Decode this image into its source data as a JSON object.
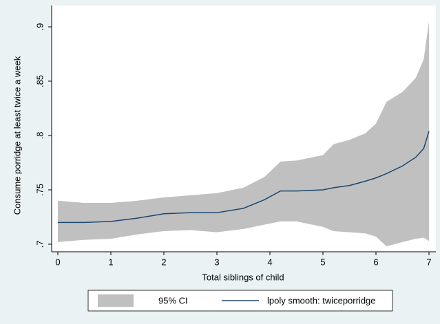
{
  "chart_data": {
    "type": "line",
    "xlabel": "Total siblings of child",
    "ylabel": "Consume porridge at least twice a week",
    "x": [
      0,
      0.5,
      1,
      1.5,
      2,
      2.5,
      3,
      3.5,
      3.9,
      4.2,
      4.5,
      5,
      5.2,
      5.5,
      5.8,
      6,
      6.2,
      6.5,
      6.75,
      6.9,
      7
    ],
    "series": [
      {
        "name": "95% CI",
        "type": "band",
        "color": "#c0c0c0",
        "lower": [
          0.702,
          0.704,
          0.705,
          0.709,
          0.712,
          0.713,
          0.711,
          0.714,
          0.718,
          0.721,
          0.721,
          0.716,
          0.712,
          0.711,
          0.71,
          0.707,
          0.698,
          0.702,
          0.705,
          0.706,
          0.703
        ],
        "upper": [
          0.74,
          0.738,
          0.738,
          0.74,
          0.743,
          0.745,
          0.747,
          0.752,
          0.762,
          0.776,
          0.777,
          0.782,
          0.792,
          0.796,
          0.802,
          0.811,
          0.831,
          0.84,
          0.853,
          0.87,
          0.905
        ]
      },
      {
        "name": "lpoly smooth: twiceporridge",
        "type": "line",
        "color": "#1a476f",
        "values": [
          0.72,
          0.72,
          0.721,
          0.724,
          0.728,
          0.729,
          0.729,
          0.733,
          0.741,
          0.749,
          0.749,
          0.75,
          0.752,
          0.754,
          0.758,
          0.761,
          0.765,
          0.772,
          0.78,
          0.788,
          0.804
        ]
      }
    ],
    "xlim": [
      0,
      7
    ],
    "xticks": [
      0,
      1,
      2,
      3,
      4,
      5,
      6,
      7
    ],
    "ylim": [
      0.7,
      0.9
    ],
    "yticks": [
      {
        "value": 0.7,
        "label": ".7"
      },
      {
        "value": 0.75,
        "label": ".75"
      },
      {
        "value": 0.8,
        "label": ".8"
      },
      {
        "value": 0.85,
        "label": ".85"
      },
      {
        "value": 0.9,
        "label": ".9"
      }
    ],
    "grid": false,
    "legend": "bottom"
  }
}
